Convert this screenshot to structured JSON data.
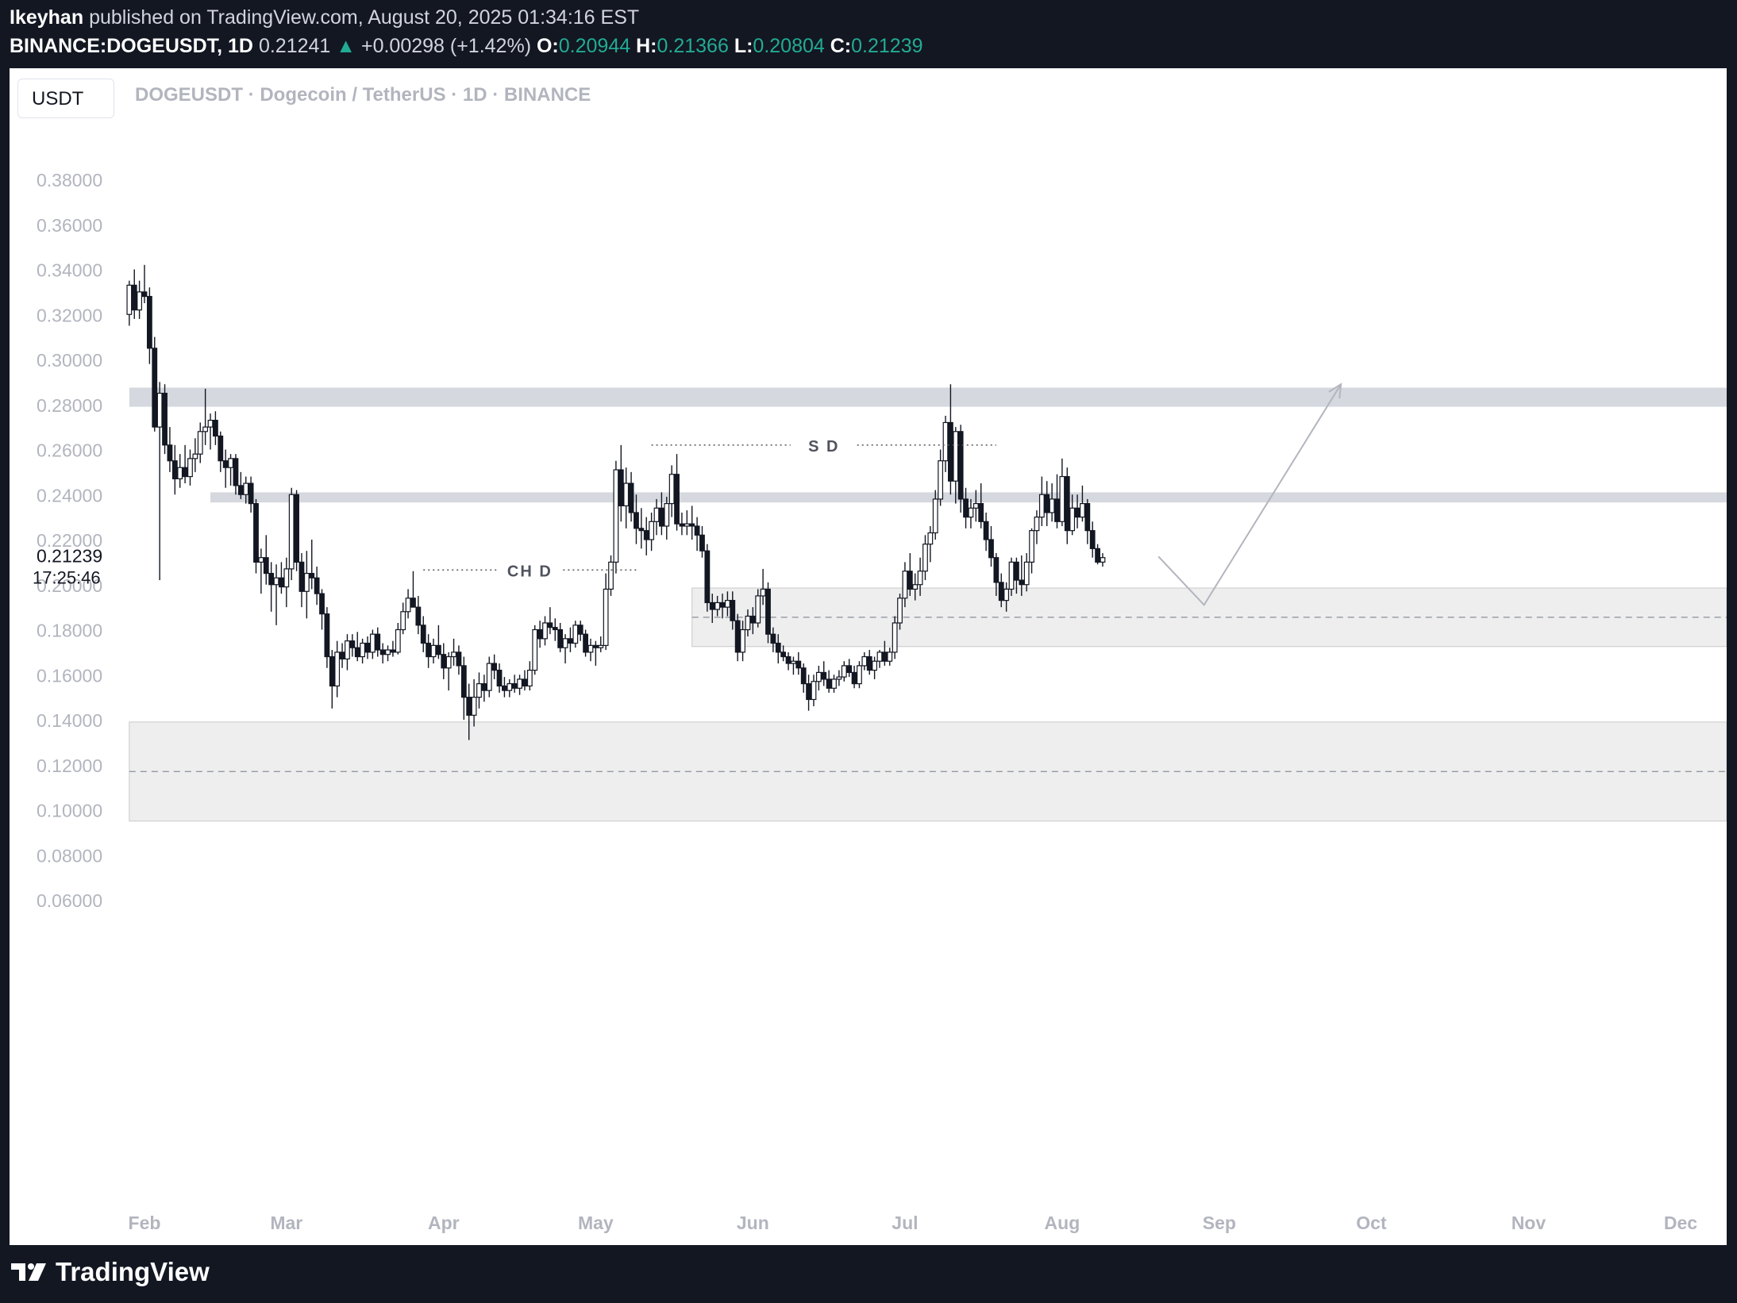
{
  "header": {
    "user": "Ikeyhan",
    "published": "published on TradingView.com, August 20, 2025 01:34:16 EST",
    "symbol": "BINANCE:DOGEUSDT, 1D",
    "last": "0.21241",
    "arrow": "▲",
    "change": "+0.00298 (+1.42%)",
    "o_label": "O:",
    "o": "0.20944",
    "h_label": "H:",
    "h": "0.21366",
    "l_label": "L:",
    "l": "0.20804",
    "c_label": "C:",
    "c": "0.21239"
  },
  "currency": "USDT",
  "symbol_title": "DOGEUSDT · Dogecoin / TetherUS · 1D · BINANCE",
  "footer": {
    "logo_text": "TradingView"
  },
  "colors": {
    "background": "#131722",
    "accent_up": "#22ab94",
    "zone": "#d1d4dc"
  },
  "chart_data": {
    "type": "candlestick",
    "y_ticks": [
      "0.38000",
      "0.36000",
      "0.34000",
      "0.32000",
      "0.30000",
      "0.28000",
      "0.26000",
      "0.24000",
      "0.22000",
      "0.20000",
      "0.18000",
      "0.16000",
      "0.14000",
      "0.12000",
      "0.10000",
      "0.08000",
      "0.06000"
    ],
    "ylim": [
      0.05,
      0.39
    ],
    "x_ticks": [
      {
        "label": "Feb",
        "date": "2025-02-01"
      },
      {
        "label": "Mar",
        "date": "2025-03-01"
      },
      {
        "label": "Apr",
        "date": "2025-04-01"
      },
      {
        "label": "May",
        "date": "2025-05-01"
      },
      {
        "label": "Jun",
        "date": "2025-06-01"
      },
      {
        "label": "Jul",
        "date": "2025-07-01"
      },
      {
        "label": "Aug",
        "date": "2025-08-01"
      },
      {
        "label": "Sep",
        "date": "2025-09-01"
      },
      {
        "label": "Oct",
        "date": "2025-10-01"
      },
      {
        "label": "Nov",
        "date": "2025-11-01"
      },
      {
        "label": "Dec",
        "date": "2025-12-01"
      }
    ],
    "last_price": {
      "price": "0.21239",
      "countdown": "17:25:46"
    },
    "candles_start": "2025-01-29",
    "candles": [
      [
        0.32,
        0.335,
        0.315,
        0.333
      ],
      [
        0.333,
        0.34,
        0.318,
        0.322
      ],
      [
        0.322,
        0.335,
        0.318,
        0.33
      ],
      [
        0.33,
        0.342,
        0.325,
        0.328
      ],
      [
        0.328,
        0.332,
        0.298,
        0.305
      ],
      [
        0.305,
        0.31,
        0.268,
        0.27
      ],
      [
        0.27,
        0.29,
        0.202,
        0.285
      ],
      [
        0.285,
        0.289,
        0.258,
        0.262
      ],
      [
        0.262,
        0.27,
        0.25,
        0.255
      ],
      [
        0.255,
        0.262,
        0.24,
        0.247
      ],
      [
        0.247,
        0.258,
        0.243,
        0.252
      ],
      [
        0.252,
        0.262,
        0.245,
        0.248
      ],
      [
        0.248,
        0.26,
        0.244,
        0.256
      ],
      [
        0.256,
        0.265,
        0.25,
        0.258
      ],
      [
        0.258,
        0.272,
        0.254,
        0.268
      ],
      [
        0.268,
        0.287,
        0.262,
        0.27
      ],
      [
        0.27,
        0.276,
        0.26,
        0.273
      ],
      [
        0.273,
        0.277,
        0.262,
        0.266
      ],
      [
        0.266,
        0.268,
        0.25,
        0.255
      ],
      [
        0.255,
        0.26,
        0.243,
        0.252
      ],
      [
        0.252,
        0.258,
        0.244,
        0.256
      ],
      [
        0.256,
        0.258,
        0.24,
        0.244
      ],
      [
        0.244,
        0.25,
        0.238,
        0.24
      ],
      [
        0.24,
        0.248,
        0.236,
        0.245
      ],
      [
        0.245,
        0.248,
        0.232,
        0.236
      ],
      [
        0.236,
        0.238,
        0.205,
        0.21
      ],
      [
        0.21,
        0.216,
        0.196,
        0.212
      ],
      [
        0.212,
        0.222,
        0.2,
        0.205
      ],
      [
        0.205,
        0.21,
        0.188,
        0.2
      ],
      [
        0.2,
        0.209,
        0.182,
        0.203
      ],
      [
        0.203,
        0.21,
        0.196,
        0.199
      ],
      [
        0.199,
        0.212,
        0.19,
        0.207
      ],
      [
        0.207,
        0.243,
        0.202,
        0.24
      ],
      [
        0.24,
        0.242,
        0.206,
        0.21
      ],
      [
        0.21,
        0.214,
        0.19,
        0.197
      ],
      [
        0.197,
        0.215,
        0.185,
        0.205
      ],
      [
        0.205,
        0.22,
        0.198,
        0.203
      ],
      [
        0.203,
        0.208,
        0.191,
        0.196
      ],
      [
        0.196,
        0.198,
        0.18,
        0.187
      ],
      [
        0.187,
        0.19,
        0.163,
        0.168
      ],
      [
        0.168,
        0.171,
        0.145,
        0.155
      ],
      [
        0.155,
        0.175,
        0.15,
        0.17
      ],
      [
        0.17,
        0.174,
        0.163,
        0.167
      ],
      [
        0.167,
        0.178,
        0.162,
        0.175
      ],
      [
        0.175,
        0.178,
        0.168,
        0.172
      ],
      [
        0.172,
        0.179,
        0.166,
        0.168
      ],
      [
        0.168,
        0.176,
        0.165,
        0.174
      ],
      [
        0.174,
        0.177,
        0.167,
        0.17
      ],
      [
        0.17,
        0.18,
        0.167,
        0.178
      ],
      [
        0.178,
        0.181,
        0.168,
        0.171
      ],
      [
        0.171,
        0.174,
        0.165,
        0.169
      ],
      [
        0.169,
        0.173,
        0.166,
        0.171
      ],
      [
        0.171,
        0.175,
        0.168,
        0.17
      ],
      [
        0.17,
        0.183,
        0.169,
        0.18
      ],
      [
        0.18,
        0.192,
        0.178,
        0.188
      ],
      [
        0.188,
        0.198,
        0.185,
        0.194
      ],
      [
        0.194,
        0.206,
        0.19,
        0.19
      ],
      [
        0.19,
        0.195,
        0.178,
        0.182
      ],
      [
        0.182,
        0.186,
        0.17,
        0.174
      ],
      [
        0.174,
        0.178,
        0.163,
        0.168
      ],
      [
        0.168,
        0.176,
        0.165,
        0.173
      ],
      [
        0.173,
        0.182,
        0.167,
        0.169
      ],
      [
        0.169,
        0.174,
        0.158,
        0.163
      ],
      [
        0.163,
        0.17,
        0.153,
        0.168
      ],
      [
        0.168,
        0.176,
        0.164,
        0.17
      ],
      [
        0.17,
        0.173,
        0.16,
        0.164
      ],
      [
        0.164,
        0.168,
        0.14,
        0.15
      ],
      [
        0.15,
        0.156,
        0.131,
        0.142
      ],
      [
        0.142,
        0.158,
        0.137,
        0.15
      ],
      [
        0.15,
        0.161,
        0.145,
        0.156
      ],
      [
        0.156,
        0.16,
        0.148,
        0.153
      ],
      [
        0.153,
        0.168,
        0.15,
        0.165
      ],
      [
        0.165,
        0.169,
        0.158,
        0.162
      ],
      [
        0.162,
        0.165,
        0.152,
        0.155
      ],
      [
        0.155,
        0.159,
        0.15,
        0.153
      ],
      [
        0.153,
        0.158,
        0.15,
        0.156
      ],
      [
        0.156,
        0.16,
        0.152,
        0.154
      ],
      [
        0.154,
        0.16,
        0.151,
        0.158
      ],
      [
        0.158,
        0.162,
        0.153,
        0.155
      ],
      [
        0.155,
        0.166,
        0.153,
        0.162
      ],
      [
        0.162,
        0.182,
        0.16,
        0.18
      ],
      [
        0.18,
        0.184,
        0.172,
        0.176
      ],
      [
        0.176,
        0.186,
        0.173,
        0.183
      ],
      [
        0.183,
        0.19,
        0.178,
        0.181
      ],
      [
        0.181,
        0.185,
        0.175,
        0.18
      ],
      [
        0.18,
        0.183,
        0.17,
        0.172
      ],
      [
        0.172,
        0.178,
        0.165,
        0.176
      ],
      [
        0.176,
        0.181,
        0.17,
        0.174
      ],
      [
        0.174,
        0.184,
        0.172,
        0.182
      ],
      [
        0.182,
        0.184,
        0.175,
        0.178
      ],
      [
        0.178,
        0.18,
        0.168,
        0.17
      ],
      [
        0.17,
        0.176,
        0.166,
        0.173
      ],
      [
        0.173,
        0.175,
        0.164,
        0.172
      ],
      [
        0.172,
        0.177,
        0.17,
        0.173
      ],
      [
        0.173,
        0.205,
        0.171,
        0.198
      ],
      [
        0.198,
        0.213,
        0.195,
        0.21
      ],
      [
        0.21,
        0.255,
        0.205,
        0.251
      ],
      [
        0.251,
        0.262,
        0.228,
        0.235
      ],
      [
        0.235,
        0.252,
        0.225,
        0.245
      ],
      [
        0.245,
        0.25,
        0.228,
        0.232
      ],
      [
        0.232,
        0.24,
        0.218,
        0.225
      ],
      [
        0.225,
        0.234,
        0.216,
        0.224
      ],
      [
        0.224,
        0.23,
        0.213,
        0.22
      ],
      [
        0.22,
        0.232,
        0.215,
        0.228
      ],
      [
        0.228,
        0.238,
        0.222,
        0.234
      ],
      [
        0.234,
        0.241,
        0.222,
        0.226
      ],
      [
        0.226,
        0.239,
        0.22,
        0.236
      ],
      [
        0.236,
        0.253,
        0.23,
        0.249
      ],
      [
        0.249,
        0.258,
        0.224,
        0.227
      ],
      [
        0.227,
        0.232,
        0.222,
        0.226
      ],
      [
        0.226,
        0.233,
        0.222,
        0.227
      ],
      [
        0.227,
        0.235,
        0.22,
        0.226
      ],
      [
        0.226,
        0.23,
        0.215,
        0.222
      ],
      [
        0.222,
        0.226,
        0.212,
        0.215
      ],
      [
        0.215,
        0.218,
        0.188,
        0.192
      ],
      [
        0.192,
        0.196,
        0.183,
        0.189
      ],
      [
        0.189,
        0.195,
        0.186,
        0.192
      ],
      [
        0.192,
        0.196,
        0.185,
        0.19
      ],
      [
        0.19,
        0.197,
        0.186,
        0.193
      ],
      [
        0.193,
        0.197,
        0.18,
        0.184
      ],
      [
        0.184,
        0.187,
        0.166,
        0.17
      ],
      [
        0.17,
        0.184,
        0.166,
        0.18
      ],
      [
        0.18,
        0.189,
        0.177,
        0.186
      ],
      [
        0.186,
        0.19,
        0.178,
        0.183
      ],
      [
        0.183,
        0.198,
        0.181,
        0.195
      ],
      [
        0.195,
        0.207,
        0.191,
        0.198
      ],
      [
        0.198,
        0.201,
        0.174,
        0.178
      ],
      [
        0.178,
        0.181,
        0.17,
        0.174
      ],
      [
        0.174,
        0.178,
        0.165,
        0.17
      ],
      [
        0.17,
        0.173,
        0.166,
        0.168
      ],
      [
        0.168,
        0.17,
        0.162,
        0.165
      ],
      [
        0.165,
        0.168,
        0.16,
        0.166
      ],
      [
        0.166,
        0.17,
        0.16,
        0.163
      ],
      [
        0.163,
        0.165,
        0.152,
        0.156
      ],
      [
        0.156,
        0.16,
        0.144,
        0.149
      ],
      [
        0.149,
        0.16,
        0.146,
        0.157
      ],
      [
        0.157,
        0.164,
        0.153,
        0.161
      ],
      [
        0.161,
        0.166,
        0.155,
        0.158
      ],
      [
        0.158,
        0.162,
        0.152,
        0.154
      ],
      [
        0.154,
        0.16,
        0.152,
        0.158
      ],
      [
        0.158,
        0.162,
        0.155,
        0.159
      ],
      [
        0.159,
        0.166,
        0.157,
        0.164
      ],
      [
        0.164,
        0.167,
        0.159,
        0.161
      ],
      [
        0.161,
        0.164,
        0.154,
        0.156
      ],
      [
        0.156,
        0.166,
        0.154,
        0.164
      ],
      [
        0.164,
        0.17,
        0.162,
        0.168
      ],
      [
        0.168,
        0.171,
        0.16,
        0.162
      ],
      [
        0.162,
        0.168,
        0.158,
        0.166
      ],
      [
        0.166,
        0.171,
        0.163,
        0.17
      ],
      [
        0.17,
        0.175,
        0.164,
        0.166
      ],
      [
        0.166,
        0.172,
        0.164,
        0.17
      ],
      [
        0.17,
        0.186,
        0.167,
        0.183
      ],
      [
        0.183,
        0.196,
        0.18,
        0.194
      ],
      [
        0.194,
        0.21,
        0.19,
        0.206
      ],
      [
        0.206,
        0.214,
        0.195,
        0.198
      ],
      [
        0.198,
        0.205,
        0.193,
        0.2
      ],
      [
        0.2,
        0.212,
        0.195,
        0.206
      ],
      [
        0.206,
        0.222,
        0.202,
        0.218
      ],
      [
        0.218,
        0.226,
        0.21,
        0.223
      ],
      [
        0.223,
        0.242,
        0.22,
        0.238
      ],
      [
        0.238,
        0.26,
        0.235,
        0.255
      ],
      [
        0.255,
        0.275,
        0.25,
        0.272
      ],
      [
        0.272,
        0.289,
        0.24,
        0.246
      ],
      [
        0.246,
        0.27,
        0.236,
        0.268
      ],
      [
        0.268,
        0.271,
        0.232,
        0.238
      ],
      [
        0.238,
        0.243,
        0.225,
        0.23
      ],
      [
        0.23,
        0.238,
        0.225,
        0.234
      ],
      [
        0.234,
        0.242,
        0.228,
        0.236
      ],
      [
        0.236,
        0.245,
        0.225,
        0.228
      ],
      [
        0.228,
        0.232,
        0.215,
        0.22
      ],
      [
        0.22,
        0.226,
        0.208,
        0.212
      ],
      [
        0.212,
        0.214,
        0.195,
        0.201
      ],
      [
        0.201,
        0.205,
        0.19,
        0.193
      ],
      [
        0.193,
        0.201,
        0.188,
        0.198
      ],
      [
        0.198,
        0.212,
        0.195,
        0.21
      ],
      [
        0.21,
        0.212,
        0.196,
        0.202
      ],
      [
        0.202,
        0.213,
        0.195,
        0.2
      ],
      [
        0.2,
        0.214,
        0.197,
        0.21
      ],
      [
        0.21,
        0.225,
        0.205,
        0.224
      ],
      [
        0.224,
        0.233,
        0.218,
        0.23
      ],
      [
        0.23,
        0.248,
        0.226,
        0.24
      ],
      [
        0.24,
        0.246,
        0.226,
        0.232
      ],
      [
        0.232,
        0.245,
        0.228,
        0.238
      ],
      [
        0.238,
        0.249,
        0.225,
        0.228
      ],
      [
        0.228,
        0.256,
        0.226,
        0.248
      ],
      [
        0.248,
        0.252,
        0.218,
        0.224
      ],
      [
        0.224,
        0.24,
        0.222,
        0.234
      ],
      [
        0.234,
        0.24,
        0.225,
        0.23
      ],
      [
        0.23,
        0.244,
        0.228,
        0.236
      ],
      [
        0.236,
        0.238,
        0.218,
        0.224
      ],
      [
        0.224,
        0.228,
        0.212,
        0.216
      ],
      [
        0.216,
        0.218,
        0.209,
        0.21
      ],
      [
        0.21,
        0.214,
        0.208,
        0.212
      ]
    ],
    "zones": [
      {
        "from": 0.279,
        "to": 0.2875,
        "start": "2025-01-29",
        "opacity": "dark"
      },
      {
        "from": 0.2365,
        "to": 0.241,
        "start": "2025-02-14",
        "opacity": "dark"
      },
      {
        "from": 0.1725,
        "to": 0.1985,
        "start": "2025-05-20",
        "mid": 0.1855,
        "opacity": "light"
      },
      {
        "from": 0.095,
        "to": 0.139,
        "start": "2025-01-29",
        "mid": 0.117,
        "opacity": "light"
      }
    ],
    "annotations": [
      {
        "label": "CH D",
        "price": 0.2065,
        "from": "2025-03-28",
        "to": "2025-05-09"
      },
      {
        "label": "S D",
        "price": 0.262,
        "from": "2025-05-12",
        "to": "2025-07-19"
      }
    ],
    "projection": [
      {
        "date": "2025-08-20",
        "price": 0.2125
      },
      {
        "date": "2025-08-29",
        "price": 0.191
      },
      {
        "date": "2025-09-25",
        "price": 0.289
      }
    ]
  }
}
